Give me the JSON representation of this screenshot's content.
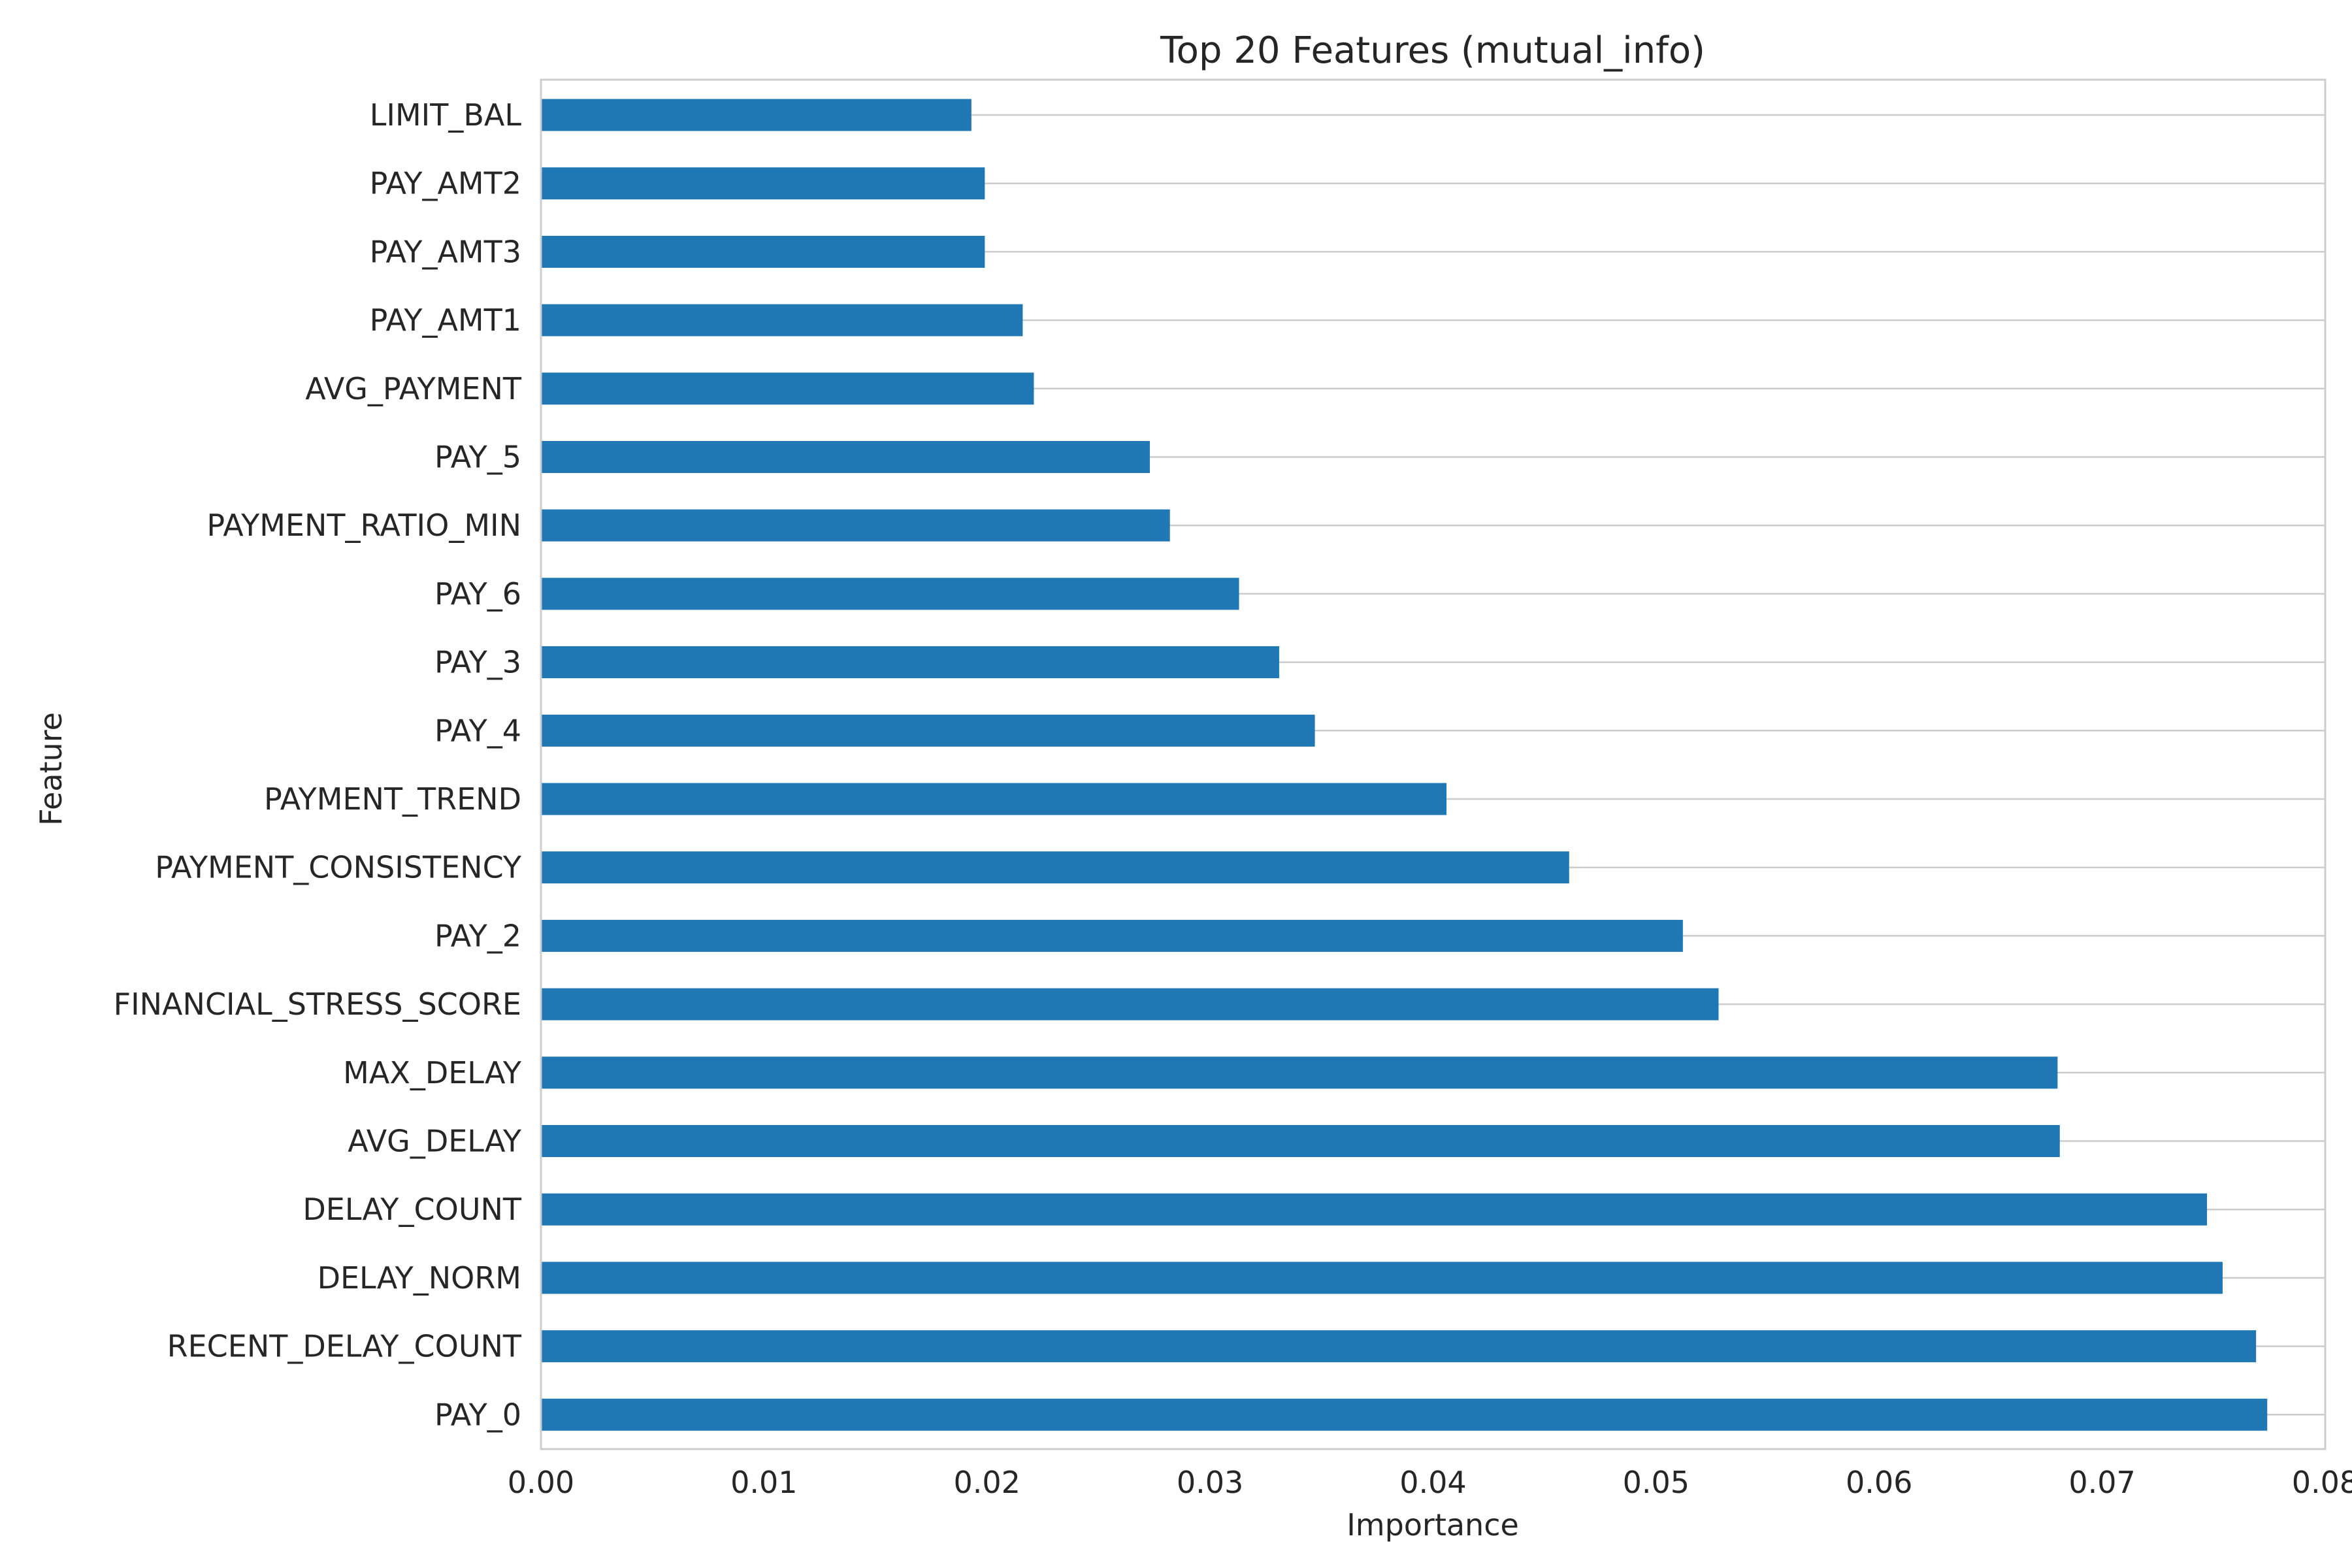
{
  "chart_data": {
    "type": "bar",
    "orientation": "horizontal",
    "title": "Top 20 Features (mutual_info)",
    "xlabel": "Importance",
    "ylabel": "Feature",
    "xlim": [
      0,
      0.08
    ],
    "xticks": [
      "0.00",
      "0.01",
      "0.02",
      "0.03",
      "0.04",
      "0.05",
      "0.06",
      "0.07",
      "0.08"
    ],
    "grid": true,
    "bar_color": "#1f77b4",
    "categories": [
      "LIMIT_BAL",
      "PAY_AMT2",
      "PAY_AMT3",
      "PAY_AMT1",
      "AVG_PAYMENT",
      "PAY_5",
      "PAYMENT_RATIO_MIN",
      "PAY_6",
      "PAY_3",
      "PAY_4",
      "PAYMENT_TREND",
      "PAYMENT_CONSISTENCY",
      "PAY_2",
      "FINANCIAL_STRESS_SCORE",
      "MAX_DELAY",
      "AVG_DELAY",
      "DELAY_COUNT",
      "DELAY_NORM",
      "RECENT_DELAY_COUNT",
      "PAY_0"
    ],
    "values": [
      0.0193,
      0.0199,
      0.0199,
      0.0216,
      0.0221,
      0.0273,
      0.0282,
      0.0313,
      0.0331,
      0.0347,
      0.0406,
      0.0461,
      0.0512,
      0.0528,
      0.068,
      0.0681,
      0.0747,
      0.0754,
      0.0769,
      0.0774
    ]
  }
}
